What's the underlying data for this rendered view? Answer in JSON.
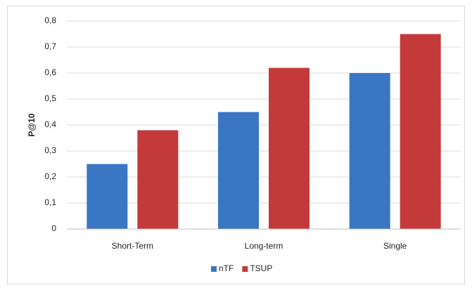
{
  "chart_data": {
    "type": "bar",
    "y_label": "P@10",
    "categories": [
      "Short-Term",
      "Long-term",
      "Single"
    ],
    "series": [
      {
        "name": "nTF",
        "color": "#3a76c4",
        "values": [
          0.25,
          0.45,
          0.6
        ]
      },
      {
        "name": "TSUP",
        "color": "#c43a3a",
        "values": [
          0.38,
          0.62,
          0.75
        ]
      }
    ],
    "ylim": [
      0,
      0.8
    ],
    "yticks": [
      0,
      {
        "value": 0.1,
        "label": "0,1"
      },
      {
        "value": 0.2,
        "label": "0,2"
      },
      {
        "value": 0.3,
        "label": "0,3"
      },
      {
        "value": 0.4,
        "label": "0,4"
      },
      {
        "value": 0.5,
        "label": "0,5"
      },
      {
        "value": 0.6,
        "label": "0,6"
      },
      {
        "value": 0.7,
        "label": "0,7"
      },
      {
        "value": 0.8,
        "label": "0,8"
      }
    ],
    "grid": true,
    "legend": "bottom"
  }
}
